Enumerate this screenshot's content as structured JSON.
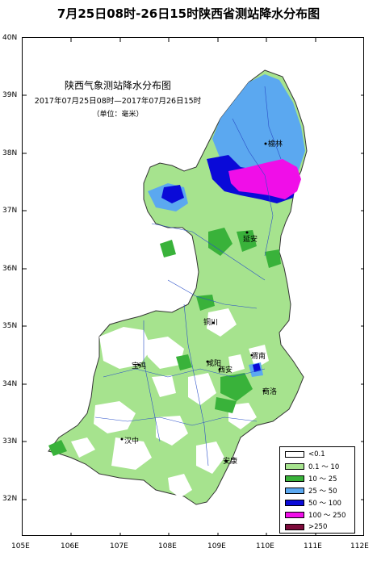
{
  "title": "7月25日08时-26日15时陕西省测站降水分布图",
  "map": {
    "title": "陕西气象测站降水分布图",
    "date_range": "2017年07月25日08时—2017年07月26日15时",
    "unit": "（单位：毫米）",
    "lat_labels": [
      "40N",
      "39N",
      "38N",
      "37N",
      "36N",
      "35N",
      "34N",
      "33N",
      "32N"
    ],
    "lon_labels": [
      "105E",
      "106E",
      "107E",
      "108E",
      "109E",
      "110E",
      "111E",
      "112E"
    ],
    "cities": [
      "榆林",
      "延安",
      "铜川",
      "宝鸡",
      "咸阳",
      "西安",
      "渭南",
      "商洛",
      "汉中",
      "安康"
    ],
    "legend": [
      {
        "label": "<0.1",
        "color": "#ffffff"
      },
      {
        "label": "0.1 ～ 10",
        "color": "#a6e38e"
      },
      {
        "label": "10 ～ 25",
        "color": "#39b23a"
      },
      {
        "label": "25 ～ 50",
        "color": "#5ba8f0"
      },
      {
        "label": "50 ～ 100",
        "color": "#0a0ad8"
      },
      {
        "label": "100 ～ 250",
        "color": "#f00ee8"
      },
      {
        "label": ">250",
        "color": "#7d0a3a"
      }
    ]
  }
}
